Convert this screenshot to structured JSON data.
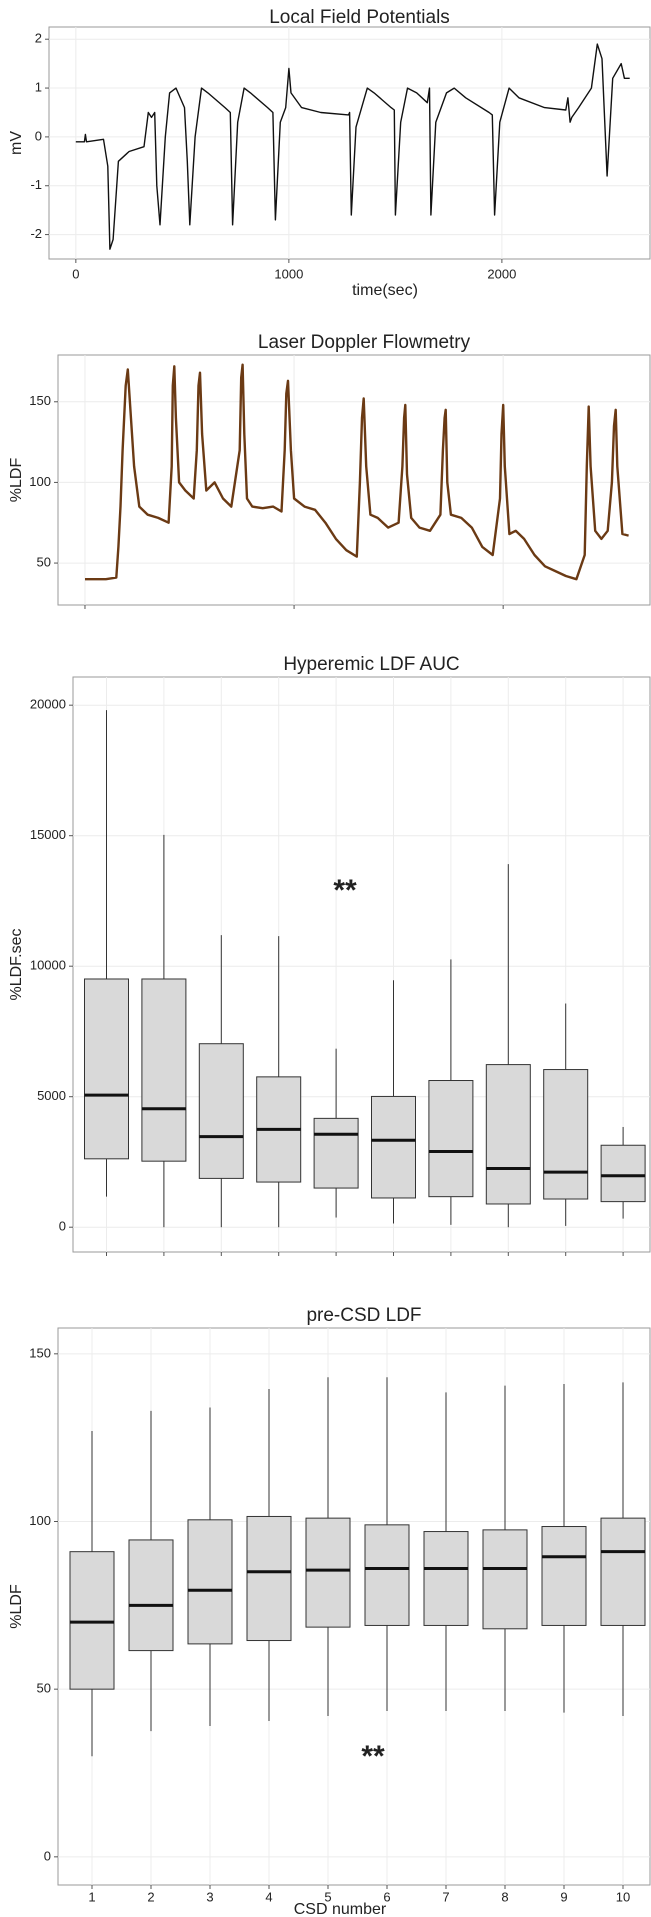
{
  "chart_data": [
    {
      "type": "line",
      "title": "Local Field Potentials",
      "x_label": "time(sec)",
      "y_label": "mV",
      "color": "#111111",
      "grid": true,
      "xlim": [
        -126,
        2700
      ],
      "xticks": [
        0,
        1000,
        2000
      ],
      "ylim": [
        -2.5,
        2.25
      ],
      "yticks": [
        -2,
        -1,
        0,
        1,
        2
      ],
      "x": [
        0,
        40,
        45,
        50,
        130,
        150,
        160,
        175,
        200,
        250,
        320,
        340,
        355,
        370,
        380,
        395,
        420,
        440,
        470,
        510,
        523,
        535,
        560,
        590,
        620,
        700,
        725,
        736,
        760,
        790,
        820,
        900,
        925,
        937,
        960,
        985,
        1000,
        1010,
        1060,
        1150,
        1280,
        1285,
        1293,
        1315,
        1368,
        1400,
        1480,
        1495,
        1500,
        1525,
        1557,
        1600,
        1650,
        1660,
        1667,
        1690,
        1740,
        1776,
        1830,
        1940,
        1955,
        1966,
        1990,
        2034,
        2080,
        2200,
        2300,
        2310,
        2320,
        2328,
        2360,
        2420,
        2448,
        2470,
        2494,
        2520,
        2560,
        2575,
        2600
      ],
      "values": [
        -0.1,
        -0.1,
        0.05,
        -0.1,
        -0.05,
        -0.6,
        -2.3,
        -2.1,
        -0.5,
        -0.3,
        -0.2,
        0.5,
        0.4,
        0.5,
        -1.0,
        -1.8,
        0.0,
        0.9,
        1.0,
        0.6,
        -0.5,
        -1.8,
        0.0,
        1.0,
        0.9,
        0.6,
        0.5,
        -1.8,
        0.3,
        1.0,
        0.9,
        0.6,
        0.5,
        -1.7,
        0.3,
        0.6,
        1.4,
        0.9,
        0.6,
        0.5,
        0.45,
        0.5,
        -1.6,
        0.2,
        1.0,
        0.9,
        0.6,
        0.55,
        -1.6,
        0.3,
        1.0,
        0.9,
        0.7,
        1.0,
        -1.6,
        0.3,
        0.9,
        1.0,
        0.8,
        0.5,
        0.45,
        -1.6,
        0.3,
        1.0,
        0.8,
        0.6,
        0.55,
        0.8,
        0.3,
        0.4,
        0.6,
        1.0,
        1.9,
        1.6,
        -0.8,
        1.2,
        1.5,
        1.2,
        1.2
      ]
    },
    {
      "type": "line",
      "title": "Laser Doppler Flowmetry",
      "y_label": "%LDF",
      "color": "#6b3a14",
      "grid": true,
      "xlim": [
        -129,
        2707
      ],
      "xticks": [
        0,
        1000,
        2000
      ],
      "ylim": [
        24,
        179
      ],
      "yticks": [
        50,
        100,
        150
      ],
      "x": [
        0,
        100,
        150,
        160,
        170,
        180,
        195,
        205,
        215,
        235,
        260,
        300,
        350,
        400,
        415,
        420,
        427,
        435,
        450,
        480,
        520,
        535,
        543,
        550,
        560,
        580,
        620,
        660,
        700,
        740,
        747,
        754,
        762,
        775,
        800,
        850,
        900,
        940,
        955,
        963,
        971,
        985,
        1000,
        1050,
        1100,
        1150,
        1200,
        1250,
        1300,
        1315,
        1325,
        1333,
        1345,
        1365,
        1400,
        1450,
        1500,
        1518,
        1526,
        1532,
        1540,
        1560,
        1600,
        1650,
        1700,
        1712,
        1720,
        1725,
        1733,
        1750,
        1800,
        1850,
        1900,
        1950,
        1985,
        1992,
        2000,
        2008,
        2030,
        2060,
        2100,
        2150,
        2200,
        2250,
        2300,
        2350,
        2390,
        2400,
        2409,
        2418,
        2440,
        2470,
        2500,
        2520,
        2530,
        2538,
        2546,
        2570,
        2600
      ],
      "values": [
        40,
        40,
        41,
        60,
        85,
        120,
        160,
        170,
        150,
        110,
        85,
        80,
        78,
        75,
        110,
        160,
        172,
        140,
        100,
        95,
        90,
        120,
        160,
        168,
        130,
        95,
        100,
        90,
        85,
        120,
        165,
        173,
        130,
        90,
        85,
        84,
        85,
        82,
        120,
        155,
        163,
        120,
        90,
        85,
        83,
        75,
        65,
        58,
        54,
        100,
        140,
        152,
        110,
        80,
        78,
        72,
        75,
        110,
        140,
        148,
        105,
        78,
        72,
        70,
        80,
        120,
        140,
        145,
        100,
        80,
        78,
        72,
        60,
        55,
        90,
        130,
        148,
        110,
        68,
        70,
        65,
        55,
        48,
        45,
        42,
        40,
        55,
        110,
        147,
        110,
        70,
        65,
        70,
        100,
        135,
        145,
        110,
        68,
        67
      ]
    },
    {
      "type": "box",
      "title": "Hyperemic LDF AUC",
      "y_label": "%LDF.sec",
      "annotation": "**",
      "color": "#d9d9d9",
      "grid": true,
      "ylim": [
        -950,
        21080
      ],
      "yticks": [
        0,
        5000,
        10000,
        15000,
        20000
      ],
      "categories": [
        null,
        null,
        null,
        null,
        null,
        null,
        null,
        null,
        null,
        null
      ],
      "boxes": [
        {
          "low": 1170,
          "q1": 2620,
          "median": 5060,
          "q3": 9510,
          "high": 19810
        },
        {
          "low": 0,
          "q1": 2530,
          "median": 4540,
          "q3": 9510,
          "high": 15030
        },
        {
          "low": 0,
          "q1": 1870,
          "median": 3470,
          "q3": 7030,
          "high": 11190
        },
        {
          "low": 0,
          "q1": 1730,
          "median": 3750,
          "q3": 5760,
          "high": 11150
        },
        {
          "low": 370,
          "q1": 1500,
          "median": 3560,
          "q3": 4170,
          "high": 6840
        },
        {
          "low": 140,
          "q1": 1120,
          "median": 3330,
          "q3": 5010,
          "high": 9460
        },
        {
          "low": 90,
          "q1": 1170,
          "median": 2900,
          "q3": 5620,
          "high": 10260
        },
        {
          "low": 0,
          "q1": 890,
          "median": 2250,
          "q3": 6230,
          "high": 13910
        },
        {
          "low": 50,
          "q1": 1080,
          "median": 2110,
          "q3": 6040,
          "high": 8570
        },
        {
          "low": 330,
          "q1": 980,
          "median": 1970,
          "q3": 3140,
          "high": 3840
        }
      ]
    },
    {
      "type": "box",
      "title": "pre-CSD LDF",
      "x_label": "CSD number",
      "y_label": "%LDF",
      "annotation": "**",
      "color": "#d9d9d9",
      "grid": true,
      "ylim": [
        -8.4,
        157.7
      ],
      "yticks": [
        0,
        50,
        100,
        150
      ],
      "categories": [
        "1",
        "2",
        "3",
        "4",
        "5",
        "6",
        "7",
        "8",
        "9",
        "10"
      ],
      "boxes": [
        {
          "low": 30,
          "q1": 50,
          "median": 70,
          "q3": 91,
          "high": 127
        },
        {
          "low": 37.5,
          "q1": 61.5,
          "median": 75,
          "q3": 94.5,
          "high": 133
        },
        {
          "low": 39,
          "q1": 63.5,
          "median": 79.5,
          "q3": 100.5,
          "high": 134
        },
        {
          "low": 40.5,
          "q1": 64.5,
          "median": 85,
          "q3": 101.5,
          "high": 139.5
        },
        {
          "low": 42,
          "q1": 68.5,
          "median": 85.5,
          "q3": 101,
          "high": 143
        },
        {
          "low": 43.5,
          "q1": 69,
          "median": 86,
          "q3": 99,
          "high": 143
        },
        {
          "low": 43.5,
          "q1": 69,
          "median": 86,
          "q3": 97,
          "high": 138.5
        },
        {
          "low": 43.5,
          "q1": 68,
          "median": 86,
          "q3": 97.5,
          "high": 140.5
        },
        {
          "low": 43,
          "q1": 69,
          "median": 89.5,
          "q3": 98.5,
          "high": 141
        },
        {
          "low": 42,
          "q1": 69,
          "median": 91,
          "q3": 101,
          "high": 141.5
        }
      ]
    }
  ]
}
